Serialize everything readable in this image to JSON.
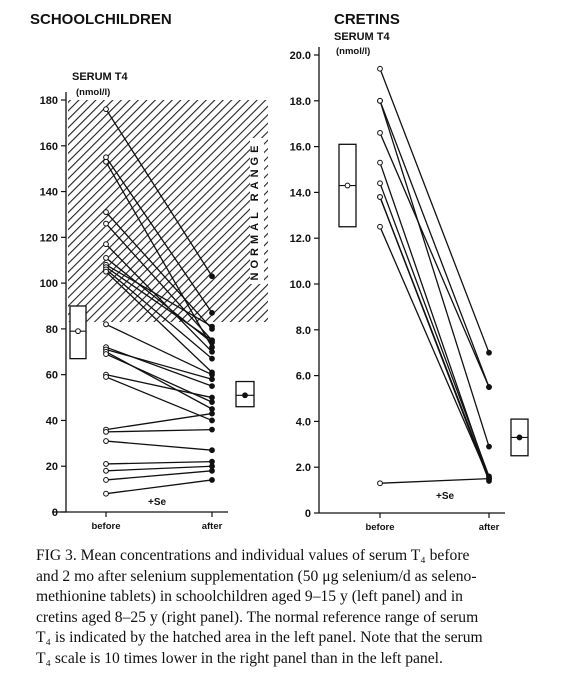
{
  "chart_data": [
    {
      "type": "line",
      "panel": "left",
      "title": "SCHOOLCHILDREN",
      "ylabel": "SERUM T4",
      "ylabel_unit": "(nmol/l)",
      "ylim": [
        0,
        180
      ],
      "yticks": [
        0,
        20,
        40,
        60,
        80,
        100,
        120,
        140,
        160,
        180
      ],
      "categories": [
        "before",
        "after"
      ],
      "normal_range": {
        "lo": 83,
        "hi": 180,
        "label": "NORMAL RANGE",
        "hatched": true
      },
      "treatment_label": "+Se",
      "mean_box_before": {
        "lo": 67,
        "hi": 90,
        "mean": 79
      },
      "mean_box_after": {
        "lo": 46,
        "hi": 57,
        "mean": 51
      },
      "pairs": [
        [
          176,
          103
        ],
        [
          155,
          87
        ],
        [
          153,
          72
        ],
        [
          131,
          80
        ],
        [
          126,
          75
        ],
        [
          117,
          70
        ],
        [
          111,
          74
        ],
        [
          108,
          81
        ],
        [
          107,
          75
        ],
        [
          106,
          67
        ],
        [
          105,
          61
        ],
        [
          82,
          60
        ],
        [
          72,
          55
        ],
        [
          71,
          58
        ],
        [
          70,
          45
        ],
        [
          69,
          48
        ],
        [
          60,
          50
        ],
        [
          59,
          40
        ],
        [
          36,
          43
        ],
        [
          35,
          36
        ],
        [
          31,
          27
        ],
        [
          21,
          22
        ],
        [
          18,
          20
        ],
        [
          14,
          18
        ],
        [
          8,
          14
        ]
      ]
    },
    {
      "type": "line",
      "panel": "right",
      "title": "CRETINS",
      "ylabel": "SERUM T4",
      "ylabel_unit": "(nmol/l)",
      "ylim": [
        0,
        20
      ],
      "yticks": [
        "0",
        "2.0",
        "4.0",
        "6.0",
        "8.0",
        "10.0",
        "12.0",
        "14.0",
        "16.0",
        "18.0",
        "20.0"
      ],
      "categories": [
        "before",
        "after"
      ],
      "treatment_label": "+Se",
      "mean_box_before": {
        "lo": 12.5,
        "hi": 16.1,
        "mean": 14.3
      },
      "mean_box_after": {
        "lo": 2.5,
        "hi": 4.1,
        "mean": 3.3
      },
      "pairs": [
        [
          19.4,
          7.0
        ],
        [
          18.0,
          5.5
        ],
        [
          18.0,
          2.9
        ],
        [
          16.6,
          5.5
        ],
        [
          15.3,
          1.5
        ],
        [
          14.4,
          1.6
        ],
        [
          13.8,
          1.4
        ],
        [
          13.8,
          1.5
        ],
        [
          12.5,
          1.5
        ],
        [
          1.3,
          1.5
        ]
      ]
    }
  ],
  "caption": {
    "lines": [
      "FIG 3. Mean concentrations and individual values of serum T₄ before",
      "and 2 mo after selenium supplementation (50 μg selenium/d as seleno-",
      "methionine tablets) in schoolchildren aged 9–15 y (left panel) and in",
      "cretins aged 8–25 y (right panel). The normal reference range of serum",
      "T₄ is indicated by the hatched area in the left panel. Note that the serum",
      "T₄ scale is 10 times lower in the right panel than in the left panel."
    ]
  }
}
